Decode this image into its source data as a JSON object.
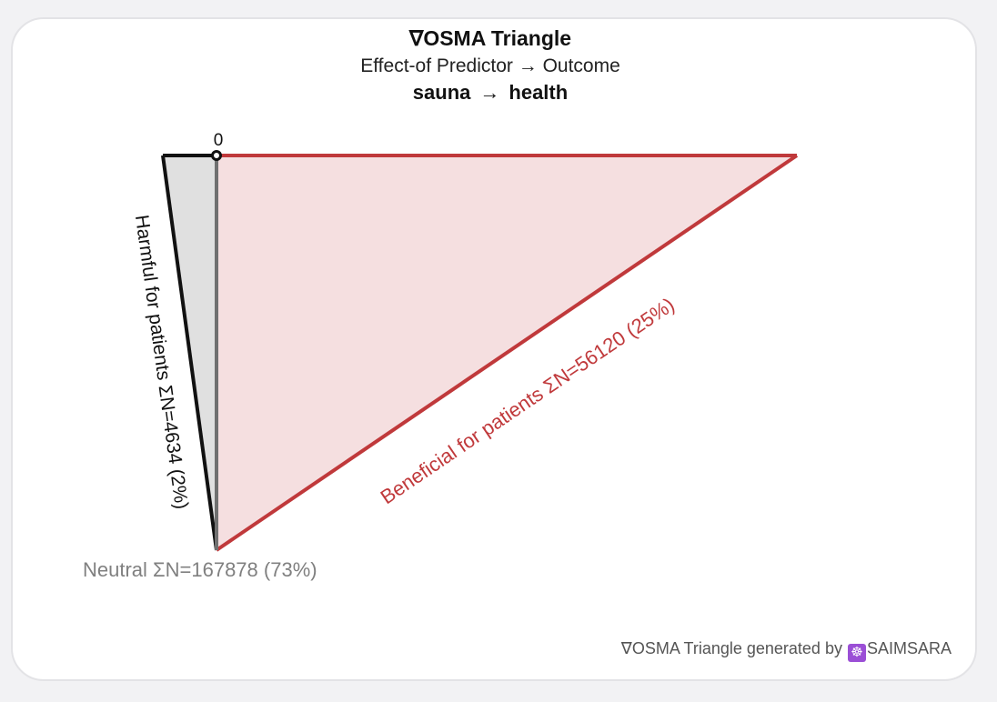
{
  "header": {
    "title": "∇OSMA Triangle",
    "subtitle": "Effect-of Predictor → Outcome",
    "predictor": "sauna",
    "arrow": "→",
    "outcome": "health"
  },
  "diagram": {
    "zero_label": "0",
    "harmful_label": "Harmful for patients ΣN=4634 (2%)",
    "beneficial_label": "Beneficial for patients ΣN=56120 (25%)",
    "neutral_label": "Neutral ΣN=167878 (73%)",
    "harmful_n": 4634,
    "beneficial_n": 56120,
    "neutral_n": 167878,
    "harmful_pct": 2,
    "beneficial_pct": 25,
    "neutral_pct": 73,
    "colors": {
      "harmful_stroke": "#111111",
      "harmful_fill": "#e0e0e0",
      "beneficial_stroke": "#c0393b",
      "beneficial_fill": "#f5dfe0",
      "neutral_text": "#808080",
      "axis": "#707070"
    }
  },
  "footer": {
    "prefix": "∇OSMA Triangle generated by",
    "logo_icon": "wheel-icon",
    "brand": "SAIMSARA"
  }
}
